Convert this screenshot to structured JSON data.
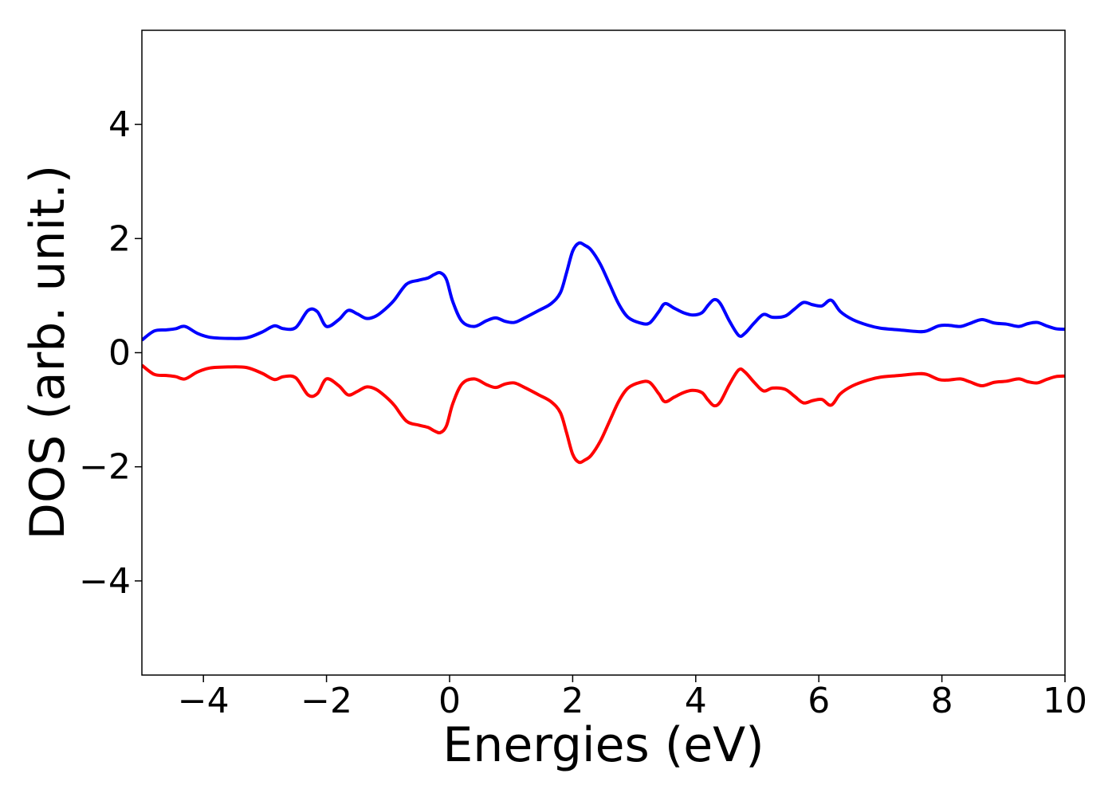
{
  "chart_data": {
    "type": "line",
    "title": "",
    "xlabel": "Energies (eV)",
    "ylabel": "DOS (arb. unit.)",
    "xlim": [
      -5,
      10
    ],
    "ylim": [
      -5.65,
      5.65
    ],
    "xticks": [
      -4,
      -2,
      0,
      2,
      4,
      6,
      8,
      10
    ],
    "xtick_labels": [
      "−4",
      "−2",
      "0",
      "2",
      "4",
      "6",
      "8",
      "10"
    ],
    "yticks": [
      -4,
      -2,
      0,
      2,
      4
    ],
    "ytick_labels": [
      "−4",
      "−2",
      "0",
      "2",
      "4"
    ],
    "grid": false,
    "legend": null,
    "series": [
      {
        "color": "#0000ff",
        "x": [
          -5.0,
          -4.8,
          -4.6,
          -4.45,
          -4.3,
          -4.1,
          -3.9,
          -3.6,
          -3.3,
          -3.05,
          -2.85,
          -2.7,
          -2.5,
          -2.3,
          -2.15,
          -2.0,
          -1.8,
          -1.65,
          -1.5,
          -1.35,
          -1.2,
          -1.05,
          -0.9,
          -0.7,
          -0.5,
          -0.35,
          -0.25,
          -0.15,
          -0.05,
          0.05,
          0.2,
          0.4,
          0.6,
          0.75,
          0.9,
          1.05,
          1.2,
          1.45,
          1.65,
          1.8,
          1.9,
          2.0,
          2.1,
          2.2,
          2.3,
          2.45,
          2.6,
          2.75,
          2.9,
          3.1,
          3.25,
          3.4,
          3.5,
          3.65,
          3.8,
          3.95,
          4.1,
          4.2,
          4.3,
          4.4,
          4.55,
          4.7,
          4.8,
          4.95,
          5.1,
          5.25,
          5.45,
          5.6,
          5.75,
          5.9,
          6.05,
          6.2,
          6.35,
          6.55,
          6.8,
          7.0,
          7.3,
          7.6,
          7.75,
          7.95,
          8.1,
          8.3,
          8.45,
          8.65,
          8.85,
          9.05,
          9.25,
          9.4,
          9.55,
          9.7,
          9.85,
          10.0
        ],
        "y": [
          0.22,
          0.38,
          0.4,
          0.42,
          0.46,
          0.34,
          0.27,
          0.25,
          0.26,
          0.36,
          0.47,
          0.42,
          0.44,
          0.74,
          0.72,
          0.46,
          0.58,
          0.74,
          0.68,
          0.6,
          0.64,
          0.76,
          0.92,
          1.2,
          1.27,
          1.31,
          1.37,
          1.4,
          1.28,
          0.9,
          0.55,
          0.46,
          0.56,
          0.61,
          0.55,
          0.53,
          0.6,
          0.74,
          0.86,
          1.05,
          1.4,
          1.78,
          1.92,
          1.88,
          1.8,
          1.55,
          1.2,
          0.85,
          0.62,
          0.52,
          0.52,
          0.72,
          0.86,
          0.78,
          0.7,
          0.66,
          0.7,
          0.83,
          0.93,
          0.86,
          0.55,
          0.3,
          0.34,
          0.52,
          0.67,
          0.62,
          0.64,
          0.76,
          0.88,
          0.84,
          0.82,
          0.92,
          0.72,
          0.58,
          0.48,
          0.43,
          0.4,
          0.37,
          0.38,
          0.47,
          0.48,
          0.46,
          0.51,
          0.58,
          0.52,
          0.5,
          0.46,
          0.51,
          0.53,
          0.47,
          0.42,
          0.41
        ]
      },
      {
        "color": "#ff0000",
        "x": [
          -5.0,
          -4.8,
          -4.6,
          -4.45,
          -4.3,
          -4.1,
          -3.9,
          -3.6,
          -3.3,
          -3.05,
          -2.85,
          -2.7,
          -2.5,
          -2.3,
          -2.15,
          -2.0,
          -1.8,
          -1.65,
          -1.5,
          -1.35,
          -1.2,
          -1.05,
          -0.9,
          -0.7,
          -0.5,
          -0.35,
          -0.25,
          -0.15,
          -0.05,
          0.05,
          0.2,
          0.4,
          0.6,
          0.75,
          0.9,
          1.05,
          1.2,
          1.45,
          1.65,
          1.8,
          1.9,
          2.0,
          2.1,
          2.2,
          2.3,
          2.45,
          2.6,
          2.75,
          2.9,
          3.1,
          3.25,
          3.4,
          3.5,
          3.65,
          3.8,
          3.95,
          4.1,
          4.2,
          4.3,
          4.4,
          4.55,
          4.7,
          4.8,
          4.95,
          5.1,
          5.25,
          5.45,
          5.6,
          5.75,
          5.9,
          6.05,
          6.2,
          6.35,
          6.55,
          6.8,
          7.0,
          7.3,
          7.6,
          7.75,
          7.95,
          8.1,
          8.3,
          8.45,
          8.65,
          8.85,
          9.05,
          9.25,
          9.4,
          9.55,
          9.7,
          9.85,
          10.0
        ],
        "y": [
          -0.22,
          -0.38,
          -0.4,
          -0.42,
          -0.46,
          -0.34,
          -0.27,
          -0.25,
          -0.26,
          -0.36,
          -0.47,
          -0.42,
          -0.44,
          -0.74,
          -0.72,
          -0.46,
          -0.58,
          -0.74,
          -0.68,
          -0.6,
          -0.64,
          -0.76,
          -0.92,
          -1.2,
          -1.27,
          -1.31,
          -1.37,
          -1.4,
          -1.28,
          -0.9,
          -0.55,
          -0.46,
          -0.56,
          -0.61,
          -0.55,
          -0.53,
          -0.6,
          -0.74,
          -0.86,
          -1.05,
          -1.4,
          -1.78,
          -1.92,
          -1.88,
          -1.8,
          -1.55,
          -1.2,
          -0.85,
          -0.62,
          -0.52,
          -0.52,
          -0.72,
          -0.86,
          -0.78,
          -0.7,
          -0.66,
          -0.7,
          -0.83,
          -0.93,
          -0.86,
          -0.55,
          -0.3,
          -0.34,
          -0.52,
          -0.67,
          -0.62,
          -0.64,
          -0.76,
          -0.88,
          -0.84,
          -0.82,
          -0.92,
          -0.72,
          -0.58,
          -0.48,
          -0.43,
          -0.4,
          -0.37,
          -0.38,
          -0.47,
          -0.48,
          -0.46,
          -0.51,
          -0.58,
          -0.52,
          -0.5,
          -0.46,
          -0.51,
          -0.53,
          -0.47,
          -0.42,
          -0.41
        ]
      }
    ]
  }
}
